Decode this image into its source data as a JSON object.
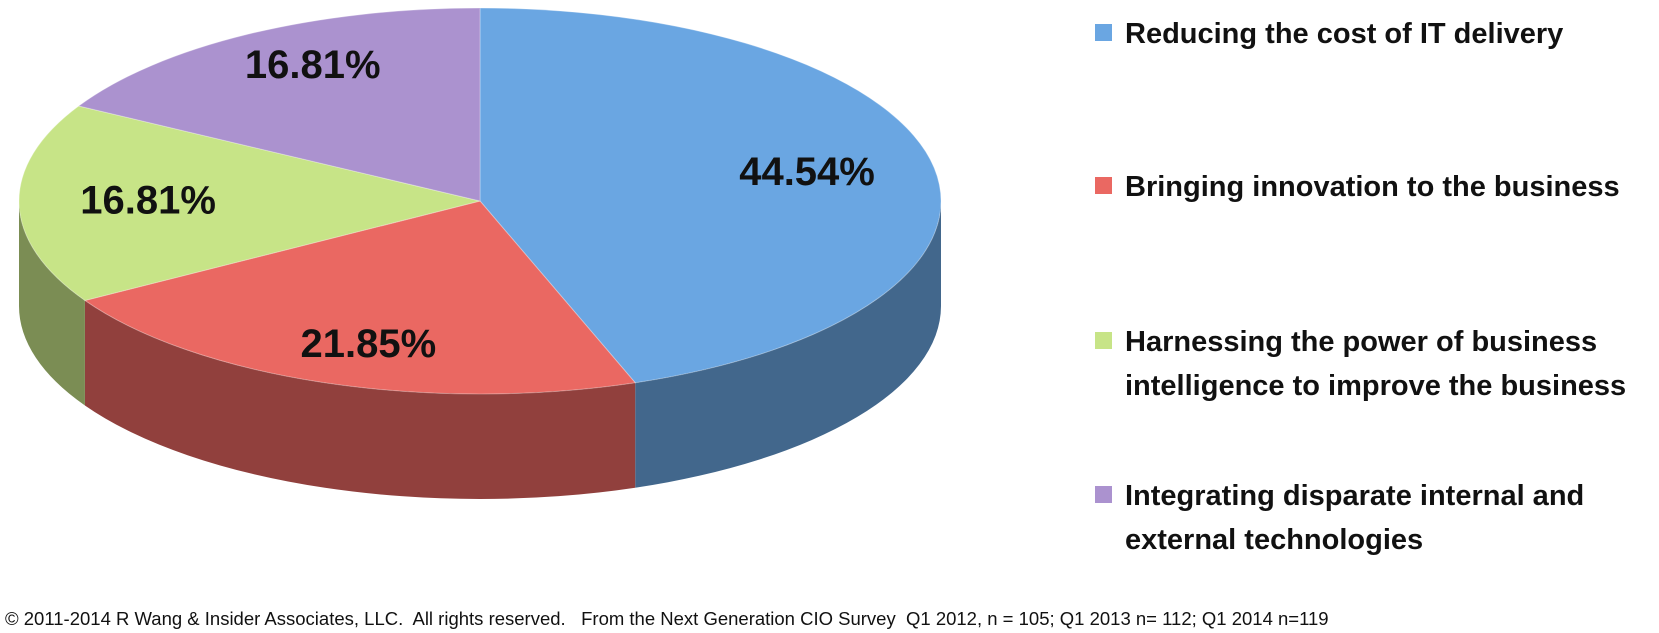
{
  "chart_data": {
    "type": "pie",
    "series": [
      {
        "name": "Reducing the cost of IT delivery",
        "color": "#6aa6e2",
        "values": [
          44.54
        ],
        "value_labels": [
          "44.54%"
        ]
      },
      {
        "name": "Bringing  innovation to the business",
        "color": "#ea6862",
        "values": [
          21.85
        ],
        "value_labels": [
          "21.85%"
        ]
      },
      {
        "name": "Harnessing the power of business intelligence to improve the business",
        "color": "#c7e487",
        "values": [
          16.81
        ],
        "value_labels": [
          "16.81%"
        ]
      },
      {
        "name": "Integrating disparate internal and external technologies",
        "color": "#ab92cf",
        "values": [
          16.81
        ],
        "value_labels": [
          "16.81%"
        ]
      }
    ],
    "legend": "right",
    "footnote": "© 2011-2014 R Wang & Insider Associates, LLC.  All rights reserved.   From the Next Generation CIO Survey  Q1 2012, n = 105; Q1 2013 n= 112; Q1 2014 n=119"
  }
}
